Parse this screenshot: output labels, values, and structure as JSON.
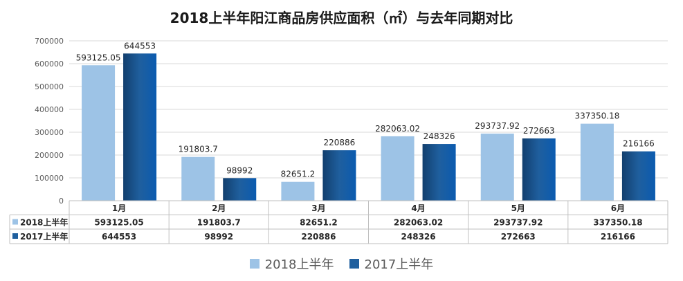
{
  "chart_data": {
    "type": "bar",
    "title": "2018上半年阳江商品房供应面积（㎡）与去年同期对比",
    "categories": [
      "1月",
      "2月",
      "3月",
      "4月",
      "5月",
      "6月"
    ],
    "series": [
      {
        "name": "2018上半年",
        "color": "#9dc3e6",
        "values": [
          593125.05,
          191803.7,
          82651.2,
          282063.02,
          293737.92,
          337350.18
        ],
        "labels": [
          "593125.05",
          "191803.7",
          "82651.2",
          "282063.02",
          "293737.92",
          "337350.18"
        ]
      },
      {
        "name": "2017上半年",
        "color": "#1f5f9e",
        "values": [
          644553,
          98992,
          220886,
          248326,
          272663,
          216166
        ],
        "labels": [
          "644553",
          "98992",
          "220886",
          "248326",
          "272663",
          "216166"
        ]
      }
    ],
    "ylim": [
      0,
      700000
    ],
    "yticks": [
      0,
      100000,
      200000,
      300000,
      400000,
      500000,
      600000,
      700000
    ],
    "grid": true,
    "data_table": true,
    "legend_position": "bottom"
  }
}
